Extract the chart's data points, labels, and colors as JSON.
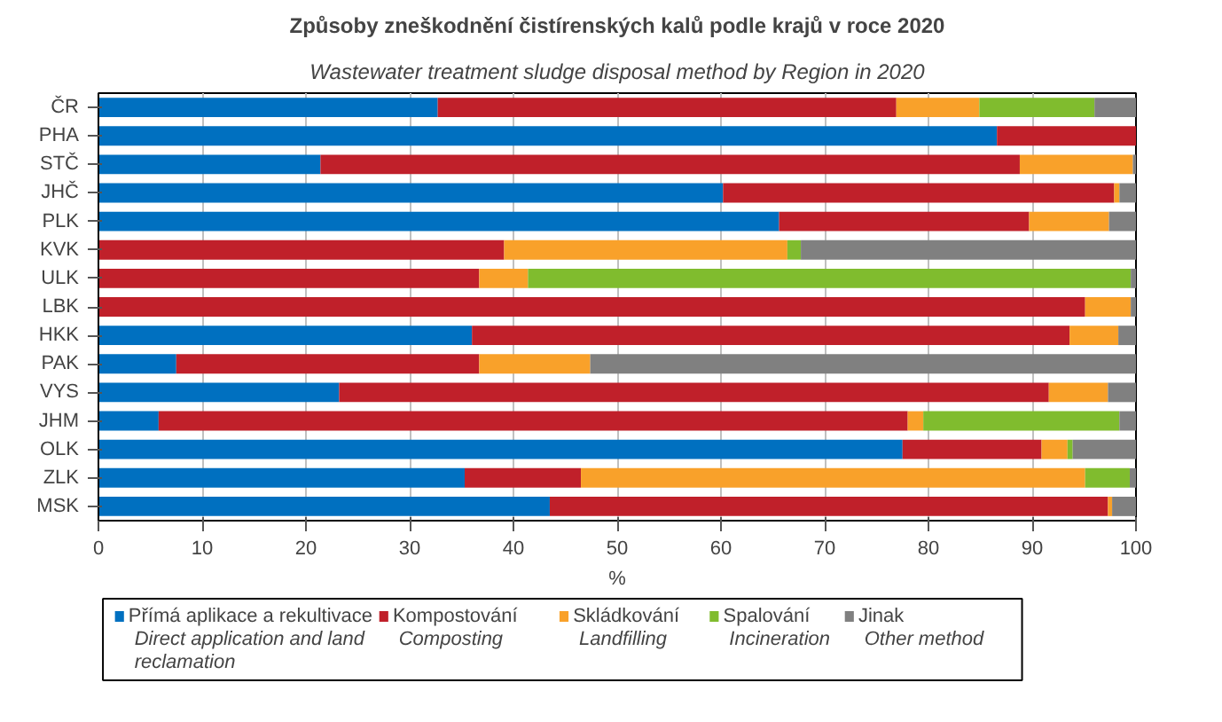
{
  "chart_data": {
    "type": "bar",
    "orientation": "horizontal",
    "stacked": true,
    "title": "Způsoby zneškodnění čistírenských kalů podle krajů v roce 2020",
    "subtitle": "Wastewater treatment sludge disposal method by Region in 2020",
    "xlabel": "%",
    "categories": [
      "ČR",
      "PHA",
      "STČ",
      "JHČ",
      "PLK",
      "KVK",
      "ULK",
      "LBK",
      "HKK",
      "PAK",
      "VYS",
      "JHM",
      "OLK",
      "ZLK",
      "MSK"
    ],
    "series": [
      {
        "name": "Přímá aplikace a rekultivace\nDirect application and land\nreclamation",
        "color": "#0070c0",
        "values": [
          32.7,
          86.6,
          21.4,
          60.2,
          65.6,
          0,
          0,
          0,
          36.0,
          7.5,
          23.2,
          5.8,
          77.5,
          35.3,
          43.5
        ]
      },
      {
        "name": "Kompostování\nComposting",
        "color": "#c0202a",
        "values": [
          44.2,
          13.4,
          67.4,
          37.7,
          24.1,
          39.1,
          36.7,
          95.1,
          57.6,
          29.2,
          68.4,
          72.2,
          13.4,
          11.2,
          53.8
        ]
      },
      {
        "name": "Skládkování\nLandfilling",
        "color": "#f9a12a",
        "values": [
          8.0,
          0,
          10.9,
          0.5,
          7.7,
          27.3,
          4.7,
          4.4,
          4.7,
          10.7,
          5.7,
          1.5,
          2.5,
          48.6,
          0.4
        ]
      },
      {
        "name": "Spalování\nIncineration",
        "color": "#80bc2e",
        "values": [
          11.1,
          0,
          0,
          0,
          0,
          1.3,
          58.1,
          0,
          0,
          0,
          0,
          18.9,
          0.5,
          4.3,
          0
        ]
      },
      {
        "name": "Jinak\nOther method",
        "color": "#808080",
        "values": [
          4.0,
          0,
          0.3,
          1.6,
          2.6,
          32.3,
          0.5,
          0.5,
          1.7,
          52.6,
          2.7,
          1.6,
          6.1,
          0.6,
          2.3
        ]
      }
    ],
    "xlim": [
      0,
      100
    ],
    "xticks": [
      0,
      10,
      20,
      30,
      40,
      50,
      60,
      70,
      80,
      90,
      100
    ],
    "grid": "x",
    "legend": "bottom"
  }
}
